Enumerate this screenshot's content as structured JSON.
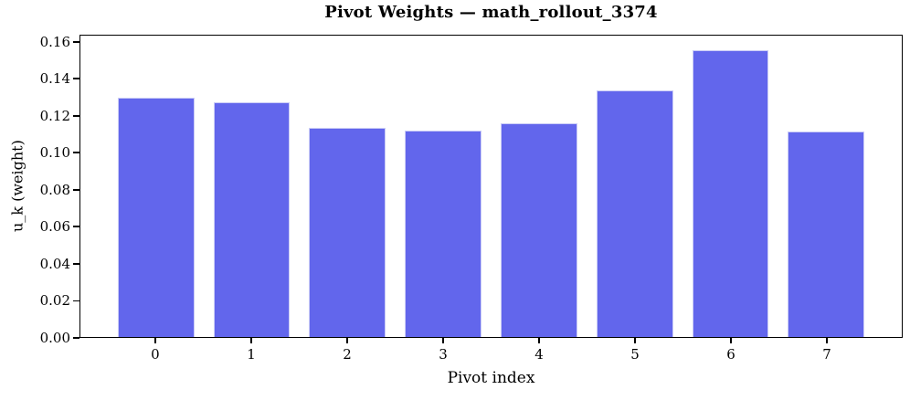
{
  "colors": {
    "bar_fill": "#6266ec",
    "bar_edge": "#caccf6",
    "axis": "#000000",
    "background": "#ffffff"
  },
  "chart_data": {
    "type": "bar",
    "title": "Pivot Weights — math_rollout_3374",
    "xlabel": "Pivot index",
    "ylabel": "u_k (weight)",
    "categories": [
      "0",
      "1",
      "2",
      "3",
      "4",
      "5",
      "6",
      "7"
    ],
    "values": [
      0.13,
      0.1275,
      0.1135,
      0.112,
      0.116,
      0.134,
      0.156,
      0.1115
    ],
    "ylim": [
      0,
      0.1638
    ],
    "y_ticks": [
      0.0,
      0.02,
      0.04,
      0.06,
      0.08,
      0.1,
      0.12,
      0.14,
      0.16
    ],
    "y_tick_labels": [
      "0.00",
      "0.02",
      "0.04",
      "0.06",
      "0.08",
      "0.10",
      "0.12",
      "0.14",
      "0.16"
    ],
    "bar_width_data_units": 0.8,
    "x_margin_frac": 0.05,
    "grid": false,
    "legend": "none"
  }
}
